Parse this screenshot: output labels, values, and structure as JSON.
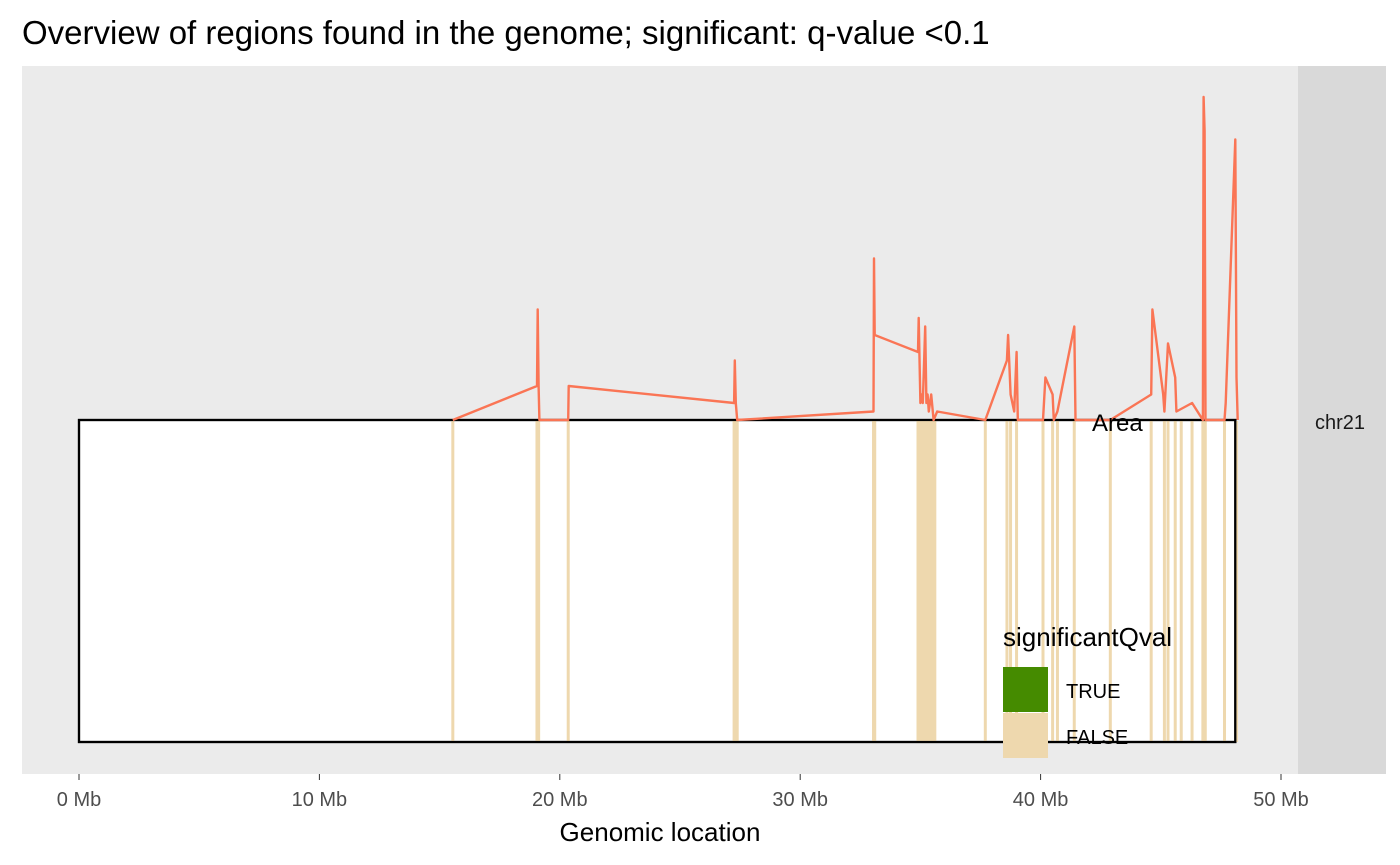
{
  "chart_data": {
    "type": "line",
    "title": "Overview of regions found in the genome; significant: q-value <0.1",
    "xlabel": "Genomic location",
    "ylabel": "",
    "x_unit": "Mb",
    "xlim": [
      0,
      50
    ],
    "x_ticks": [
      {
        "value": 0,
        "label": "0 Mb"
      },
      {
        "value": 10,
        "label": "10 Mb"
      },
      {
        "value": 20,
        "label": "20 Mb"
      },
      {
        "value": 30,
        "label": "30 Mb"
      },
      {
        "value": 40,
        "label": "40 Mb"
      },
      {
        "value": 50,
        "label": "50 Mb"
      }
    ],
    "facet": "chr21",
    "chromosome_extent": [
      0,
      48.1
    ],
    "area_label": "Area",
    "legend": {
      "title": "significantQval",
      "placement": "bottom-right-inside",
      "entries": [
        {
          "label": "TRUE",
          "color": "#458B00"
        },
        {
          "label": "FALSE",
          "color": "#EED8AE"
        }
      ]
    },
    "colors": {
      "panel_bg": "#EBEBEB",
      "strip_bg": "#D9D9D9",
      "area_line": "#FA7555",
      "region_false": "#EED8AE",
      "region_true": "#458B00",
      "chromosome_outline": "#000000"
    },
    "regions": [
      {
        "x": 15.55,
        "sig": false
      },
      {
        "x": 19.05,
        "sig": false
      },
      {
        "x": 19.12,
        "sig": false
      },
      {
        "x": 20.35,
        "sig": false
      },
      {
        "x": 27.25,
        "sig": false
      },
      {
        "x": 27.32,
        "sig": false
      },
      {
        "x": 27.38,
        "sig": false
      },
      {
        "x": 33.05,
        "sig": false
      },
      {
        "x": 33.1,
        "sig": false
      },
      {
        "x": 34.9,
        "sig": false
      },
      {
        "x": 35.0,
        "sig": false
      },
      {
        "x": 35.1,
        "sig": false
      },
      {
        "x": 35.2,
        "sig": false
      },
      {
        "x": 35.3,
        "sig": false
      },
      {
        "x": 35.4,
        "sig": false
      },
      {
        "x": 35.5,
        "sig": false
      },
      {
        "x": 35.6,
        "sig": false
      },
      {
        "x": 37.7,
        "sig": false
      },
      {
        "x": 38.6,
        "sig": false
      },
      {
        "x": 38.75,
        "sig": false
      },
      {
        "x": 39.0,
        "sig": false
      },
      {
        "x": 40.1,
        "sig": false
      },
      {
        "x": 40.5,
        "sig": false
      },
      {
        "x": 40.7,
        "sig": false
      },
      {
        "x": 41.4,
        "sig": false
      },
      {
        "x": 42.9,
        "sig": false
      },
      {
        "x": 44.6,
        "sig": false
      },
      {
        "x": 45.15,
        "sig": false
      },
      {
        "x": 45.3,
        "sig": false
      },
      {
        "x": 45.6,
        "sig": false
      },
      {
        "x": 45.85,
        "sig": false
      },
      {
        "x": 46.3,
        "sig": false
      },
      {
        "x": 46.75,
        "sig": false
      },
      {
        "x": 46.85,
        "sig": false
      },
      {
        "x": 47.65,
        "sig": false
      },
      {
        "x": 48.15,
        "sig": false
      }
    ],
    "area_series": {
      "name": "Area",
      "x": [
        15.55,
        19.05,
        19.08,
        19.12,
        19.15,
        20.35,
        20.37,
        27.25,
        27.28,
        27.32,
        27.35,
        27.38,
        33.05,
        33.07,
        33.1,
        34.9,
        34.93,
        35.0,
        35.05,
        35.1,
        35.2,
        35.25,
        35.3,
        35.35,
        35.45,
        35.55,
        35.7,
        37.7,
        38.6,
        38.65,
        38.75,
        38.9,
        39.0,
        39.05,
        40.1,
        40.2,
        40.5,
        40.55,
        40.7,
        41.4,
        41.45,
        42.9,
        44.6,
        44.65,
        45.1,
        45.15,
        45.3,
        45.6,
        45.65,
        46.3,
        46.75,
        46.78,
        46.82,
        46.86,
        46.9,
        47.65,
        47.7,
        48.1,
        48.15,
        48.2
      ],
      "y": [
        0.0,
        0.4,
        1.3,
        0.4,
        0.0,
        0.0,
        0.4,
        0.2,
        0.7,
        0.2,
        0.1,
        0.0,
        0.1,
        1.9,
        1.0,
        0.8,
        1.2,
        0.2,
        0.3,
        0.2,
        1.1,
        0.2,
        0.3,
        0.1,
        0.3,
        0.0,
        0.1,
        0.0,
        0.7,
        1.0,
        0.3,
        0.1,
        0.8,
        0.0,
        0.0,
        0.5,
        0.3,
        0.0,
        0.1,
        1.1,
        0.0,
        0.0,
        0.3,
        1.3,
        0.3,
        0.1,
        0.9,
        0.5,
        0.1,
        0.2,
        0.0,
        3.8,
        3.4,
        0.0,
        0.0,
        0.0,
        0.2,
        3.3,
        0.5,
        0.0
      ]
    }
  }
}
